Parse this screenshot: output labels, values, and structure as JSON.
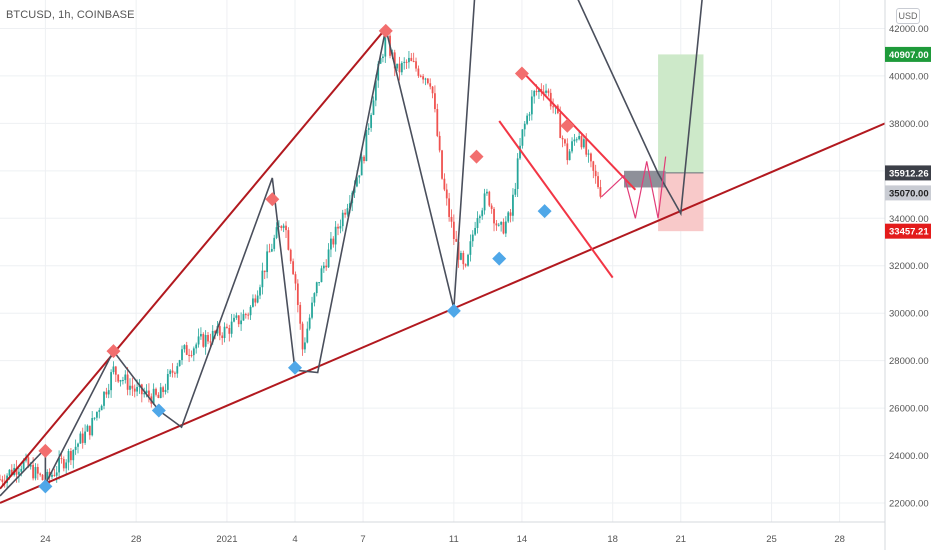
{
  "header": {
    "symbol": "BTCUSD, 1h, COINBASE",
    "unit_button": "USD"
  },
  "colors": {
    "up": "#26a69a",
    "down": "#ef5350",
    "trendline": "#b2191f",
    "channel": "#f23645",
    "zigzag": "#4a4f5c",
    "peak_marker": "#f26e6e",
    "trough_marker": "#4fa7e8",
    "profit_zone": "#cde9c9",
    "loss_zone": "#f8c9c9",
    "projection": "#e23c78"
  },
  "chart_data": {
    "type": "candlestick",
    "title": "BTCUSD, 1h, COINBASE",
    "ylim": [
      21200,
      43200
    ],
    "xlim": [
      "2020-12-22",
      "2021-01-30"
    ],
    "y_ticks": [
      22000,
      24000,
      26000,
      28000,
      30000,
      32000,
      34000,
      36000,
      38000,
      40000,
      42000
    ],
    "y_tick_labels": [
      "22000.00",
      "24000.00",
      "26000.00",
      "28000.00",
      "30000.00",
      "32000.00",
      "34000.00",
      "36000.00",
      "38000.00",
      "40000.00",
      "42000.00"
    ],
    "x_ticks": [
      "2020-12-24",
      "2020-12-28",
      "2021-01-01",
      "2021-01-04",
      "2021-01-07",
      "2021-01-11",
      "2021-01-14",
      "2021-01-18",
      "2021-01-21",
      "2021-01-25",
      "2021-01-28"
    ],
    "x_tick_labels": [
      "24",
      "28",
      "2021",
      "4",
      "7",
      "11",
      "14",
      "18",
      "21",
      "25",
      "28"
    ],
    "price_path": [
      [
        "2020-12-22",
        23000
      ],
      [
        "2020-12-23",
        23700
      ],
      [
        "2020-12-24",
        22900
      ],
      [
        "2020-12-25",
        24000
      ],
      [
        "2020-12-26",
        25200
      ],
      [
        "2020-12-27",
        27600
      ],
      [
        "2020-12-28",
        26700
      ],
      [
        "2020-12-29",
        26400
      ],
      [
        "2020-12-30",
        28300
      ],
      [
        "2020-12-31",
        28900
      ],
      [
        "2021-01-01",
        29300
      ],
      [
        "2021-01-02",
        30100
      ],
      [
        "2021-01-03",
        32900
      ],
      [
        "2021-01-03 12:00",
        34000
      ],
      [
        "2021-01-04",
        31500
      ],
      [
        "2021-01-04 08:00",
        28500
      ],
      [
        "2021-01-05",
        31300
      ],
      [
        "2021-01-06",
        33900
      ],
      [
        "2021-01-07",
        36500
      ],
      [
        "2021-01-07 12:00",
        39500
      ],
      [
        "2021-01-08",
        41600
      ],
      [
        "2021-01-08 12:00",
        40200
      ],
      [
        "2021-01-09",
        40600
      ],
      [
        "2021-01-10",
        39800
      ],
      [
        "2021-01-10 12:00",
        35500
      ],
      [
        "2021-01-11",
        33200
      ],
      [
        "2021-01-11 12:00",
        31600
      ],
      [
        "2021-01-12",
        34200
      ],
      [
        "2021-01-12 12:00",
        35000
      ],
      [
        "2021-01-13",
        33400
      ],
      [
        "2021-01-13 12:00",
        34100
      ],
      [
        "2021-01-14",
        37500
      ],
      [
        "2021-01-14 12:00",
        39200
      ],
      [
        "2021-01-15",
        39600
      ],
      [
        "2021-01-15 12:00",
        38400
      ],
      [
        "2021-01-16",
        36600
      ],
      [
        "2021-01-16 12:00",
        37700
      ],
      [
        "2021-01-17",
        36200
      ],
      [
        "2021-01-17 12:00",
        35100
      ]
    ],
    "support_line": {
      "from": [
        "2020-12-22",
        22000
      ],
      "to": [
        "2021-01-30",
        38000
      ]
    },
    "resistance_line": {
      "from": [
        "2020-12-22",
        22600
      ],
      "to": [
        "2021-01-08",
        42000
      ]
    },
    "channel_upper": {
      "from": [
        "2021-01-14",
        40200
      ],
      "to": [
        "2021-01-19",
        35200
      ]
    },
    "channel_lower": {
      "from": [
        "2021-01-13",
        38100
      ],
      "to": [
        "2021-01-18",
        31500
      ]
    },
    "zigzag": [
      [
        "2020-12-22",
        22300
      ],
      [
        "2020-12-24",
        24300
      ],
      [
        "2020-12-24",
        22800
      ],
      [
        "2020-12-27",
        28400
      ],
      [
        "2020-12-29",
        25900
      ],
      [
        "2020-12-30",
        25200
      ],
      [
        "2021-01-03",
        35700
      ],
      [
        "2021-01-04",
        27600
      ],
      [
        "2021-01-05",
        27500
      ],
      [
        "2021-01-08",
        42000
      ],
      [
        "2021-01-11",
        30200
      ],
      [
        "2021-01-12",
        44500
      ],
      [
        "2021-01-14",
        44500
      ],
      [
        "2021-01-16",
        44200
      ],
      [
        "2021-01-20",
        35900
      ],
      [
        "2021-01-21",
        34200
      ],
      [
        "2021-01-22",
        43800
      ]
    ],
    "peaks": [
      [
        "2020-12-24",
        24200
      ],
      [
        "2020-12-27",
        28400
      ],
      [
        "2021-01-03",
        34800
      ],
      [
        "2021-01-08",
        41900
      ],
      [
        "2021-01-12",
        36600
      ],
      [
        "2021-01-14",
        40100
      ],
      [
        "2021-01-16",
        37900
      ]
    ],
    "troughs": [
      [
        "2020-12-24",
        22700
      ],
      [
        "2020-12-29",
        25900
      ],
      [
        "2021-01-04",
        27700
      ],
      [
        "2021-01-11",
        30100
      ],
      [
        "2021-01-13",
        32300
      ],
      [
        "2021-01-15",
        34300
      ]
    ],
    "projection_path": [
      [
        "2021-01-17 12:00",
        34900
      ],
      [
        "2021-01-18 12:00",
        35800
      ],
      [
        "2021-01-19",
        34000
      ],
      [
        "2021-01-19 12:00",
        36400
      ],
      [
        "2021-01-20",
        34000
      ],
      [
        "2021-01-20 08:00",
        36600
      ]
    ],
    "position": {
      "entry": 35912.26,
      "target": 40907.0,
      "stop": 33457.21,
      "start": "2021-01-20",
      "end": "2021-01-22"
    },
    "price_badges": [
      {
        "value": "40907.00",
        "color": "#1e9a3a"
      },
      {
        "value": "35912.26",
        "color": "#3c3f48"
      },
      {
        "value": "35070.00",
        "color": "#c9ccd3"
      },
      {
        "value": "33457.21",
        "color": "#e31b1b"
      }
    ]
  }
}
